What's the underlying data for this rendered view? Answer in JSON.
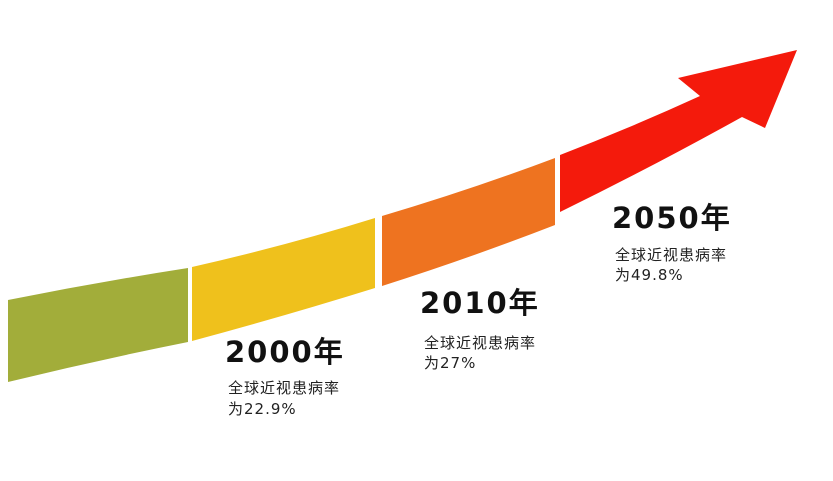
{
  "milestones": [
    {
      "year": "2000年",
      "label": "全球近视患病率",
      "rate": "为22.9%"
    },
    {
      "year": "2010年",
      "label": "全球近视患病率",
      "rate": "为27%"
    },
    {
      "year": "2050年",
      "label": "全球近视患病率",
      "rate": "为49.8%"
    }
  ]
}
